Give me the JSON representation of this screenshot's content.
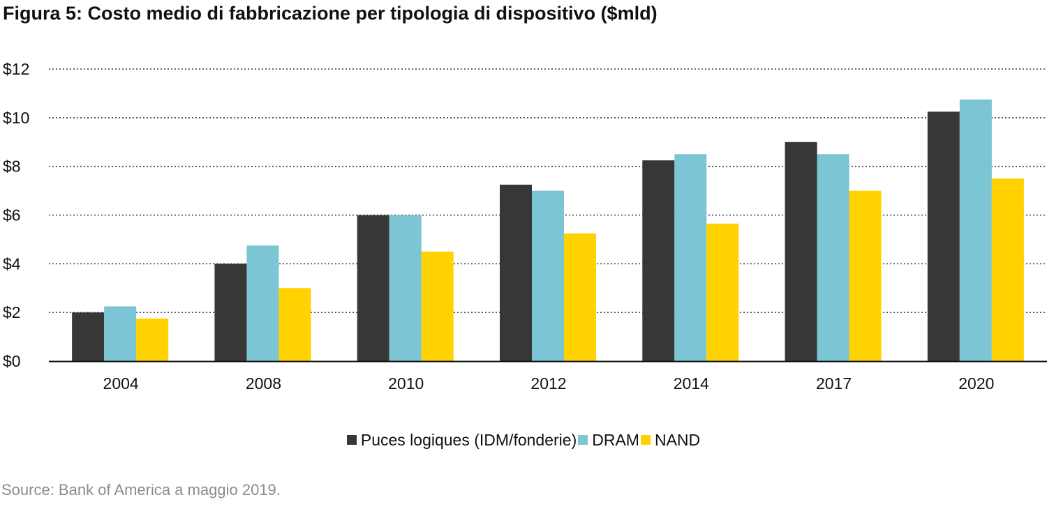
{
  "title": "Figura 5: Costo medio di fabbricazione per tipologia di dispositivo ($mld)",
  "source": "Source: Bank of America a maggio 2019.",
  "colors": {
    "logic": "#373735",
    "dram": "#7cc5d4",
    "nand": "#ffd200"
  },
  "chart_data": {
    "type": "bar",
    "title": "Figura 5: Costo medio di fabbricazione per tipologia di dispositivo ($mld)",
    "categories": [
      "2004",
      "2008",
      "2010",
      "2012",
      "2014",
      "2017",
      "2020"
    ],
    "series": [
      {
        "name": "Puces logiques (IDM/fonderie)",
        "color": "#373735",
        "values": [
          2.0,
          4.0,
          6.0,
          7.25,
          8.25,
          9.0,
          10.25
        ]
      },
      {
        "name": "DRAM",
        "color": "#7cc5d4",
        "values": [
          2.25,
          4.75,
          6.0,
          7.0,
          8.5,
          8.5,
          10.75
        ]
      },
      {
        "name": "NAND",
        "color": "#ffd200",
        "values": [
          1.75,
          3.0,
          4.5,
          5.25,
          5.65,
          7.0,
          7.5
        ]
      }
    ],
    "ylim": [
      0,
      12
    ],
    "yticks": [
      0,
      2,
      4,
      6,
      8,
      10,
      12
    ],
    "ytick_labels": [
      "$0",
      "$2",
      "$4",
      "$6",
      "$8",
      "$10",
      "$12"
    ],
    "grid": true,
    "grid_style": "dotted",
    "legend_position": "bottom"
  }
}
